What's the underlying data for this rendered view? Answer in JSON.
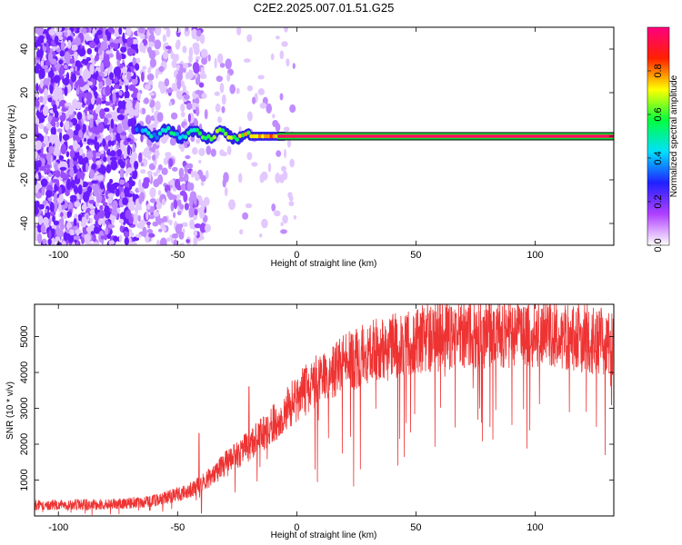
{
  "figure_title": "C2E2.2025.007.01.51.G25",
  "chart_data": [
    {
      "type": "heatmap",
      "xlabel": "Height of straight line (km)",
      "ylabel": "Frequency (Hz)",
      "xlim": [
        -110,
        133
      ],
      "ylim": [
        -50,
        50
      ],
      "xticks": [
        -100,
        -50,
        0,
        50,
        100
      ],
      "yticks": [
        -40,
        -20,
        0,
        20,
        40
      ],
      "grid": false,
      "colorbar": {
        "label": "Normalized spectral amplitude",
        "range": [
          0,
          1
        ],
        "ticks": [
          "0.0",
          "0.2",
          "0.4",
          "0.6",
          "0.8"
        ],
        "tick_values": [
          0,
          0.2,
          0.4,
          0.6,
          0.8
        ],
        "colors": [
          "#ffffff",
          "#b040ff",
          "#2020ff",
          "#00e0ff",
          "#00ff40",
          "#ffff00",
          "#ff2000",
          "#ff0080"
        ]
      },
      "signal_line": {
        "x_start": -67,
        "x_end": 133,
        "frequency": 0,
        "amplitude": 1.0
      },
      "noise_region": {
        "x_dense": [
          -110,
          -67
        ],
        "x_sparse": [
          -67,
          -38
        ],
        "frequency_range": [
          -50,
          50
        ]
      }
    },
    {
      "type": "line",
      "xlabel": "Height of straight line (km)",
      "ylabel": "SNR (10 * v/v)",
      "xlim": [
        -110,
        133
      ],
      "ylim": [
        0,
        5900
      ],
      "xticks": [
        -100,
        -50,
        0,
        50,
        100
      ],
      "yticks": [
        1000,
        2000,
        3000,
        4000,
        5000
      ],
      "grid": false,
      "color": "#ee3333",
      "trend_points": {
        "x": [
          -110,
          -80,
          -60,
          -45,
          -38,
          -30,
          -20,
          -10,
          0,
          10,
          20,
          30,
          40,
          50,
          60,
          70,
          80,
          90,
          100,
          110,
          120,
          133
        ],
        "y": [
          300,
          320,
          420,
          700,
          1000,
          1450,
          1950,
          2550,
          3300,
          3850,
          4250,
          4550,
          4700,
          4900,
          5000,
          5050,
          5100,
          5100,
          5050,
          5050,
          4950,
          4800
        ]
      },
      "notable_spikes": [
        {
          "x": -41,
          "y": 2300
        },
        {
          "x": -20,
          "y": 3600
        },
        {
          "x": 4,
          "y": 4000
        },
        {
          "x": 16,
          "y": 4550
        },
        {
          "x": 25,
          "y": 5200
        },
        {
          "x": 127,
          "y": 5700
        }
      ],
      "notable_dips": [
        {
          "x": -40,
          "y": 80
        },
        {
          "x": 132,
          "y": 3100
        }
      ]
    }
  ]
}
